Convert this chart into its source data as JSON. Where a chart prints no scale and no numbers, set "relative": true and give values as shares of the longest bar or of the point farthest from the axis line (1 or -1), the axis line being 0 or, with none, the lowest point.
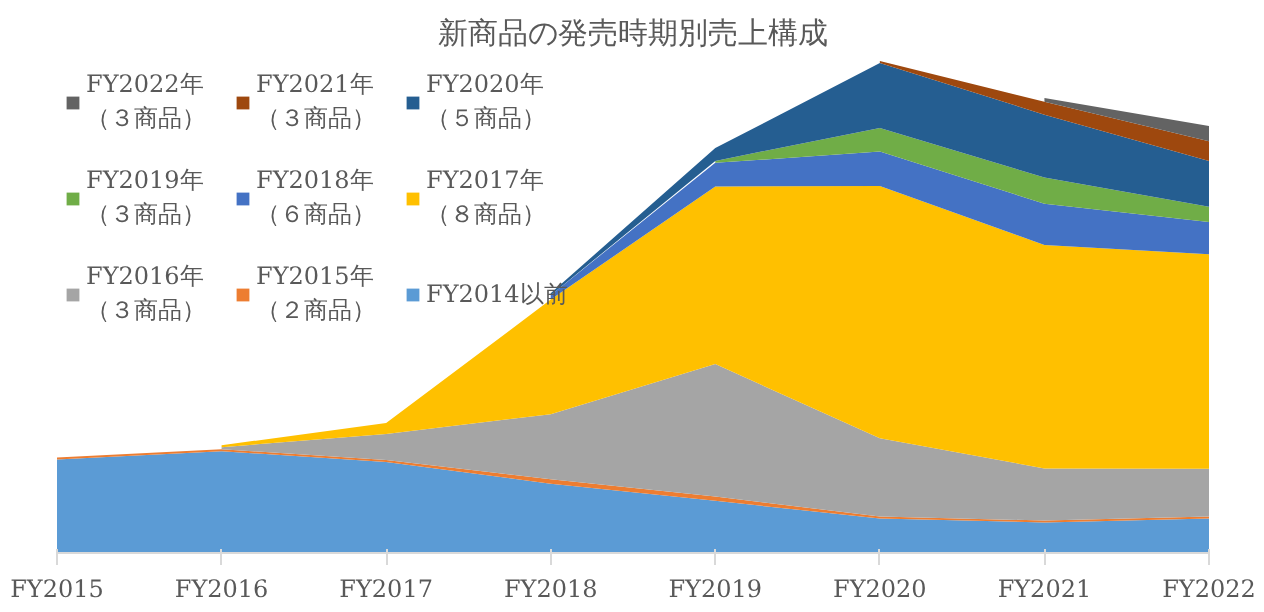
{
  "chart_data": {
    "type": "area",
    "title": "新商品の発売時期別売上構成",
    "stacked": true,
    "relative": true,
    "legend": "top left",
    "grid": false,
    "categories": [
      "FY2015",
      "FY2016",
      "FY2017",
      "FY2018",
      "FY2019",
      "FY2020",
      "FY2021",
      "FY2022"
    ],
    "series": [
      {
        "name": "FY2014以前",
        "color": "#5b9bd5",
        "values": [
          0.19,
          0.207,
          0.185,
          0.141,
          0.106,
          0.07,
          0.062,
          0.07
        ]
      },
      {
        "name": "FY2015年（２商品）",
        "color": "#ed7d31",
        "values": [
          0.004,
          0.004,
          0.004,
          0.009,
          0.009,
          0.004,
          0.004,
          0.004
        ]
      },
      {
        "name": "FY2016年（３商品）",
        "color": "#a5a5a5",
        "values": [
          null,
          0.004,
          0.053,
          0.132,
          0.269,
          0.159,
          0.106,
          0.097
        ]
      },
      {
        "name": "FY2017年（８商品）",
        "color": "#ffc000",
        "values": [
          null,
          0.004,
          0.022,
          0.233,
          0.361,
          0.513,
          0.454,
          0.436
        ]
      },
      {
        "name": "FY2018年（６商品）",
        "color": "#4472c4",
        "values": [
          null,
          null,
          null,
          0.009,
          0.048,
          0.07,
          0.084,
          0.066
        ]
      },
      {
        "name": "FY2019年（３商品）",
        "color": "#70ad47",
        "values": [
          null,
          null,
          null,
          null,
          0.004,
          0.048,
          0.053,
          0.031
        ]
      },
      {
        "name": "FY2020年（５商品）",
        "color": "#255e91",
        "values": [
          null,
          null,
          null,
          0.004,
          0.026,
          0.132,
          0.128,
          0.093
        ]
      },
      {
        "name": "FY2021年（３商品）",
        "color": "#9e480e",
        "values": [
          null,
          null,
          null,
          null,
          null,
          0.004,
          0.026,
          0.04
        ]
      },
      {
        "name": "FY2022年（３商品）",
        "color": "#636363",
        "values": [
          null,
          null,
          null,
          null,
          null,
          null,
          0.008,
          0.031
        ]
      }
    ]
  }
}
